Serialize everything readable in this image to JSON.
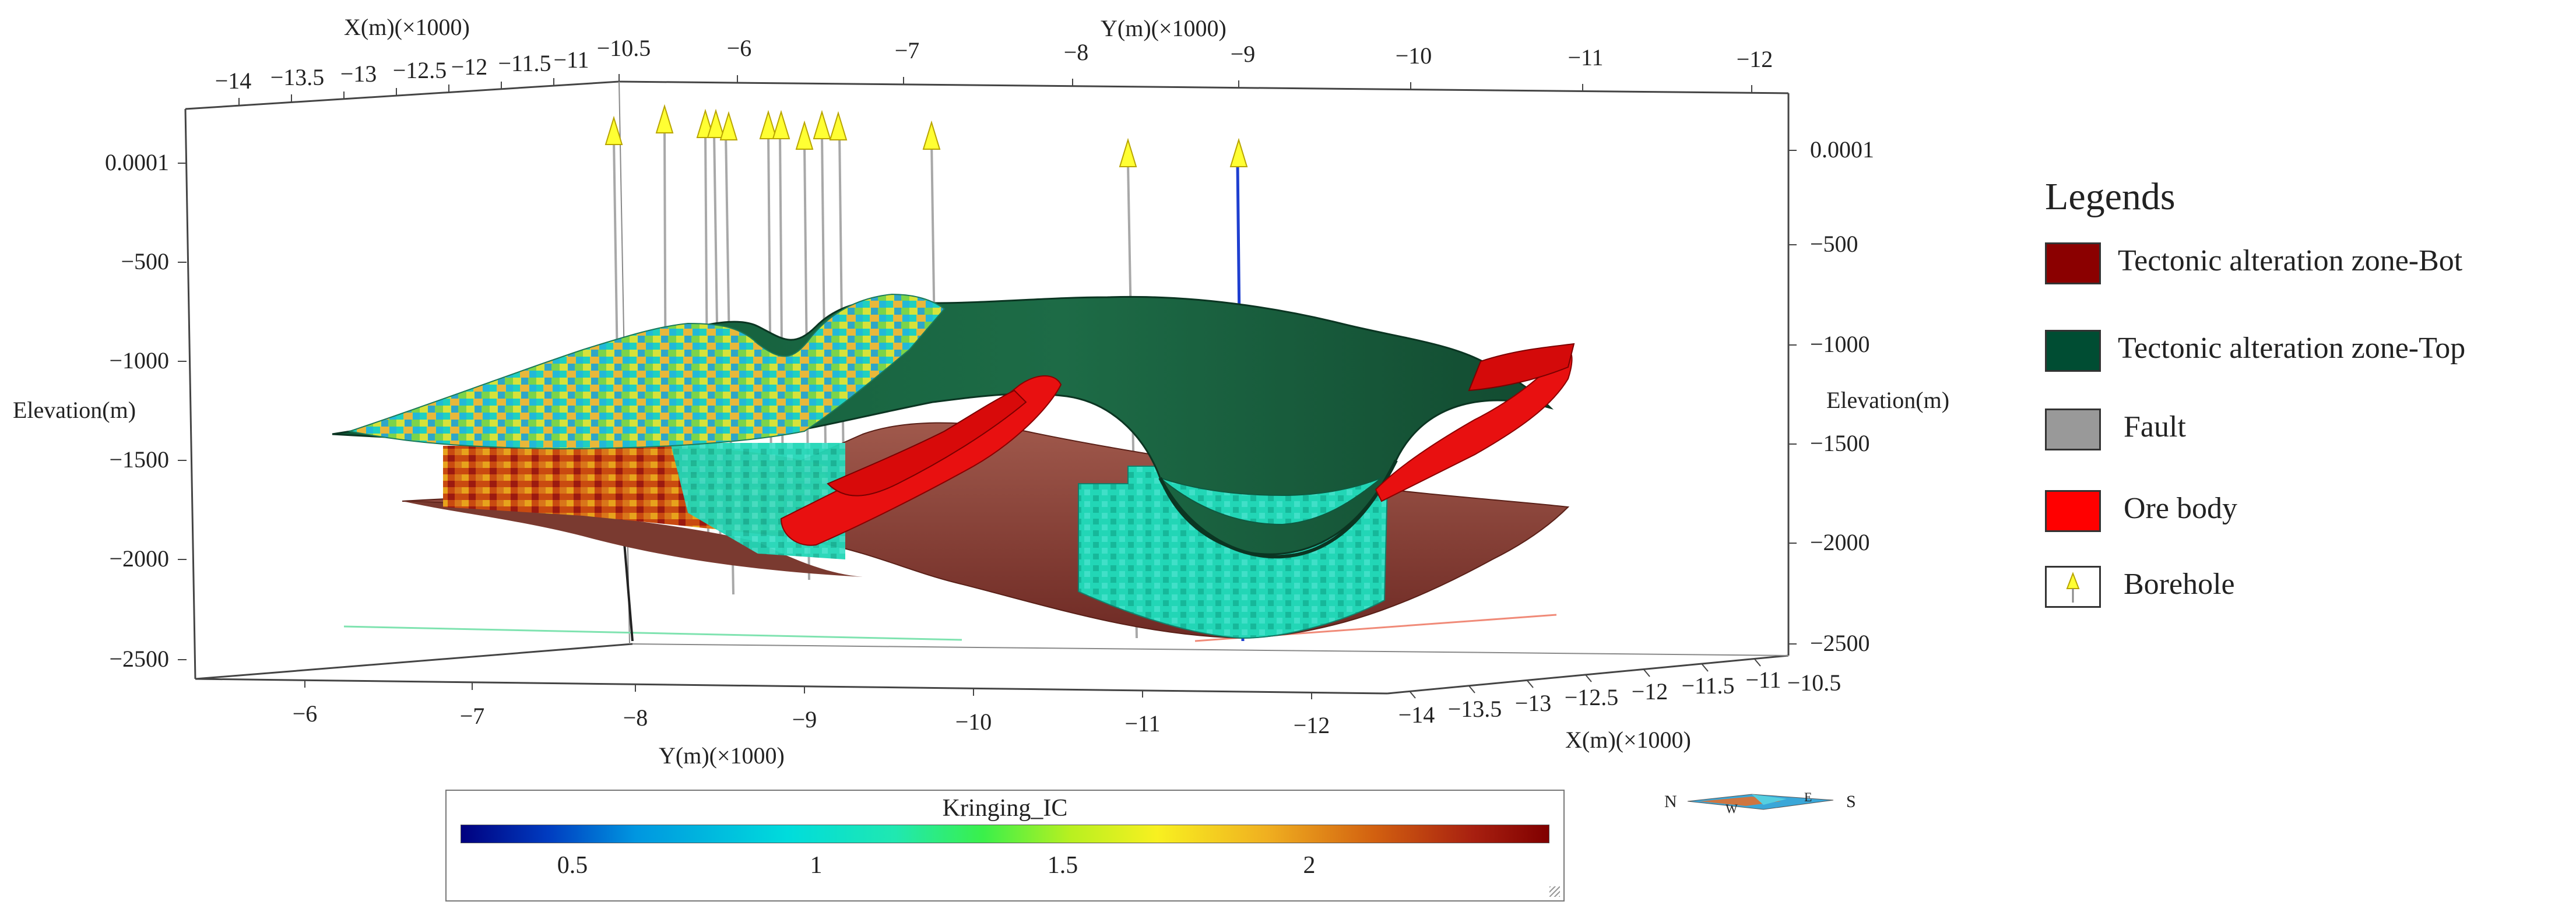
{
  "axes": {
    "top_x_title": "X(m)(×1000)",
    "top_y_title": "Y(m)(×1000)",
    "bottom_y_title": "Y(m)(×1000)",
    "bottom_x_title": "X(m)(×1000)",
    "left_z_title": "Elevation(m)",
    "right_z_title": "Elevation(m)",
    "top_x_ticks": [
      "−14",
      "−13.5",
      "−13",
      "−12.5",
      "−12",
      "−11.5",
      "−11",
      "−10.5"
    ],
    "top_y_ticks": [
      "−6",
      "−7",
      "−8",
      "−9",
      "−10",
      "−11",
      "−12"
    ],
    "bottom_y_ticks": [
      "−6",
      "−7",
      "−8",
      "−9",
      "−10",
      "−11",
      "−12"
    ],
    "bottom_x_ticks": [
      "−14",
      "−13.5",
      "−13",
      "−12.5",
      "−12",
      "−11.5",
      "−11",
      "−10.5"
    ],
    "left_z_ticks": [
      "0.0001",
      "−500",
      "−1000",
      "−1500",
      "−2000",
      "−2500"
    ],
    "right_z_ticks": [
      "0.0001",
      "−500",
      "−1000",
      "−1500",
      "−2000",
      "−2500"
    ]
  },
  "legend": {
    "title": "Legends",
    "items": [
      {
        "label": "Tectonic alteration zone-Bot",
        "color": "#8b0000"
      },
      {
        "label": "Tectonic alteration zone-Top",
        "color": "#004d33"
      },
      {
        "label": "Fault",
        "color": "#999999"
      },
      {
        "label": "Ore body",
        "color": "#ff0000"
      },
      {
        "label": "Borehole",
        "icon": "borehole-icon",
        "color": "#ffff33"
      }
    ]
  },
  "colorbar": {
    "title": "Kringing_IC",
    "ticks": [
      "0.5",
      "1",
      "1.5",
      "2"
    ],
    "tick_values": [
      0.5,
      1,
      1.5,
      2
    ],
    "min": 0.3,
    "max": 2.5
  },
  "compass": {
    "n": "N",
    "w": "W",
    "e": "E",
    "s": "S"
  }
}
